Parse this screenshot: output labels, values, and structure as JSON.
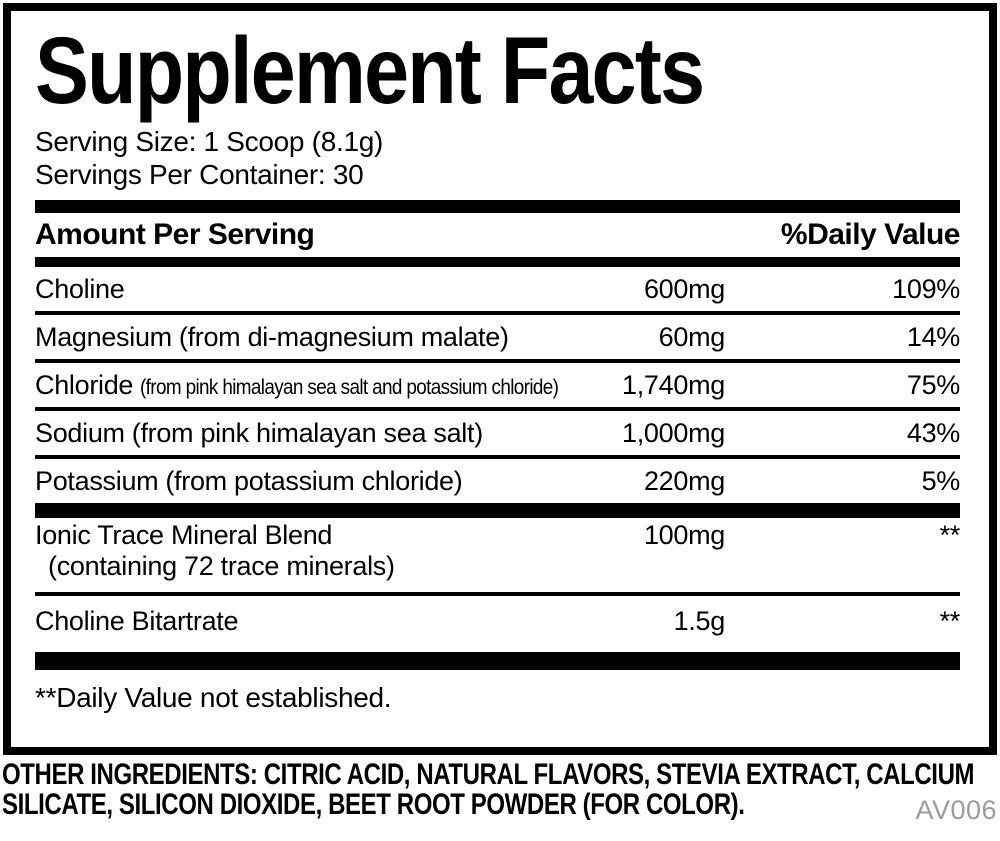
{
  "label": {
    "title": "Supplement Facts",
    "serving_size": "Serving Size: 1 Scoop (8.1g)",
    "servings_per_container": "Servings Per Container: 30",
    "columns": {
      "amount_header": "Amount Per Serving",
      "dv_header": "%Daily Value"
    },
    "groups": [
      {
        "rows": [
          {
            "name": "Choline",
            "amount": "600mg",
            "dv": "109%"
          },
          {
            "name": "Magnesium",
            "qualifier": "(from di-magnesium malate)",
            "amount": "60mg",
            "dv": "14%"
          },
          {
            "name": "Chloride",
            "qualifier": "(from pink himalayan sea salt and potassium chloride)",
            "amount": "1,740mg",
            "dv": "75%"
          },
          {
            "name": "Sodium",
            "qualifier": "(from pink himalayan sea salt)",
            "amount": "1,000mg",
            "dv": "43%"
          },
          {
            "name": "Potassium",
            "qualifier": "(from potassium chloride)",
            "amount": "220mg",
            "dv": "5%"
          }
        ]
      },
      {
        "rows": [
          {
            "name": "Ionic Trace Mineral Blend",
            "subline": "(containing 72 trace minerals)",
            "amount": "100mg",
            "dv": "**"
          },
          {
            "name": "Choline Bitartrate",
            "amount": "1.5g",
            "dv": "**"
          }
        ]
      }
    ],
    "footnote": "**Daily Value not established."
  },
  "footer": {
    "other_ingredients": "OTHER INGREDIENTS: CITRIC ACID, NATURAL FLAVORS, STEVIA EXTRACT, CALCIUM SILICATE, SILICON DIOXIDE, BEET ROOT POWDER (FOR COLOR).",
    "code": "AV006"
  },
  "colors": {
    "ink": "#000000",
    "background": "#ffffff",
    "code_gray": "#9b9b9b"
  }
}
